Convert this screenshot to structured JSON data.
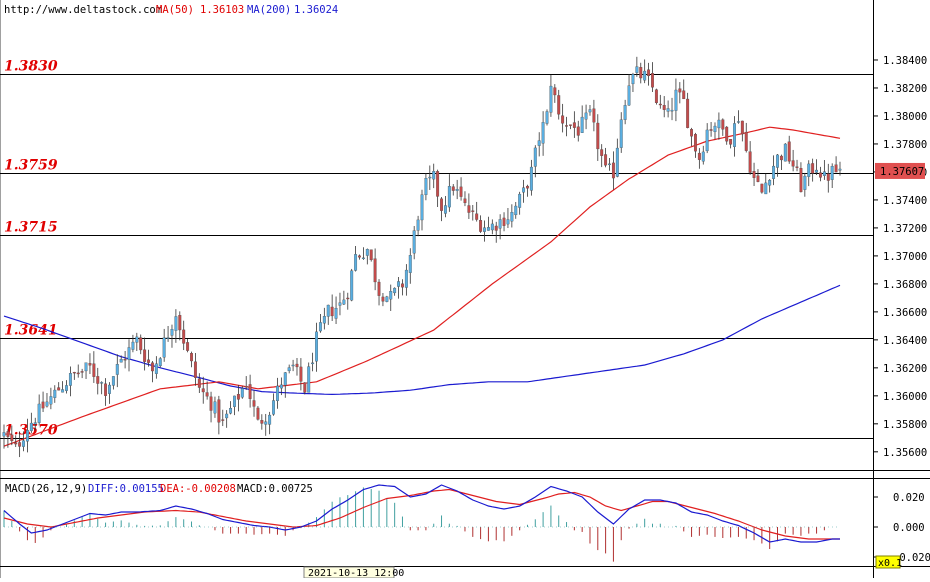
{
  "header": {
    "site": "http://www.deltastock.com",
    "ma50_label": "MA(50)",
    "ma50_value": "1.36103",
    "ma200_label": "MA(200)",
    "ma200_value": "1.36024"
  },
  "macd_header": {
    "name": "MACD(26,12,9)",
    "diff": "DIFF:0.00155",
    "dea": "DEA:-0.00208",
    "macd": "MACD:0.00725"
  },
  "date_marker": "2021-10-13 12:00",
  "zoom_label": "x0.1",
  "colors": {
    "up": "#5aaee0",
    "down": "#c24b4b",
    "ma50": "#e02020",
    "ma200": "#1a1ad0",
    "diff": "#1a1ad0",
    "dea": "#e02020",
    "level_text": "#e00000",
    "price_tag": "#e05050"
  },
  "chart_data": [
    {
      "type": "candlestick",
      "ylim": [
        1.3547,
        1.3865
      ],
      "y_ticks": [
        "1.38400",
        "1.38200",
        "1.38000",
        "1.37800",
        "1.37600",
        "1.37400",
        "1.37200",
        "1.37000",
        "1.36800",
        "1.36600",
        "1.36400",
        "1.36200",
        "1.36000",
        "1.35800",
        "1.35600"
      ],
      "y_tick_values": [
        1.384,
        1.382,
        1.38,
        1.378,
        1.376,
        1.374,
        1.372,
        1.37,
        1.368,
        1.366,
        1.364,
        1.362,
        1.36,
        1.358,
        1.356
      ],
      "levels": [
        {
          "label": "1.3830",
          "value": 1.383
        },
        {
          "label": "1.3759",
          "value": 1.3759
        },
        {
          "label": "1.3715",
          "value": 1.3715
        },
        {
          "label": "1.3641",
          "value": 1.3641
        },
        {
          "label": "1.3570",
          "value": 1.357
        }
      ],
      "last_price": "1.37607",
      "last_price_value": 1.37607,
      "anchors": [
        [
          0,
          1.3572
        ],
        [
          3,
          1.3562
        ],
        [
          6,
          1.3578
        ],
        [
          10,
          1.3592
        ],
        [
          14,
          1.3605
        ],
        [
          18,
          1.3615
        ],
        [
          22,
          1.362
        ],
        [
          26,
          1.3605
        ],
        [
          30,
          1.3625
        ],
        [
          34,
          1.364
        ],
        [
          38,
          1.3618
        ],
        [
          42,
          1.3645
        ],
        [
          44,
          1.366
        ],
        [
          47,
          1.363
        ],
        [
          50,
          1.3605
        ],
        [
          53,
          1.3595
        ],
        [
          56,
          1.358
        ],
        [
          59,
          1.3595
        ],
        [
          62,
          1.361
        ],
        [
          65,
          1.358
        ],
        [
          68,
          1.359
        ],
        [
          71,
          1.361
        ],
        [
          74,
          1.362
        ],
        [
          77,
          1.3605
        ],
        [
          80,
          1.364
        ],
        [
          83,
          1.366
        ],
        [
          86,
          1.3665
        ],
        [
          88,
          1.3675
        ],
        [
          90,
          1.37
        ],
        [
          93,
          1.3705
        ],
        [
          96,
          1.3675
        ],
        [
          99,
          1.367
        ],
        [
          102,
          1.368
        ],
        [
          104,
          1.37
        ],
        [
          106,
          1.373
        ],
        [
          108,
          1.375
        ],
        [
          110,
          1.3755
        ],
        [
          112,
          1.3735
        ],
        [
          115,
          1.375
        ],
        [
          118,
          1.3735
        ],
        [
          121,
          1.3725
        ],
        [
          124,
          1.372
        ],
        [
          127,
          1.3725
        ],
        [
          130,
          1.373
        ],
        [
          133,
          1.3745
        ],
        [
          135,
          1.376
        ],
        [
          137,
          1.3785
        ],
        [
          139,
          1.38
        ],
        [
          140,
          1.3825
        ],
        [
          142,
          1.38
        ],
        [
          144,
          1.3795
        ],
        [
          147,
          1.379
        ],
        [
          150,
          1.38
        ],
        [
          152,
          1.378
        ],
        [
          154,
          1.376
        ],
        [
          156,
          1.376
        ],
        [
          158,
          1.38
        ],
        [
          160,
          1.3825
        ],
        [
          162,
          1.383
        ],
        [
          164,
          1.3828
        ],
        [
          166,
          1.382
        ],
        [
          168,
          1.3805
        ],
        [
          170,
          1.38
        ],
        [
          172,
          1.3815
        ],
        [
          174,
          1.381
        ],
        [
          176,
          1.3785
        ],
        [
          178,
          1.377
        ],
        [
          180,
          1.379
        ],
        [
          182,
          1.3795
        ],
        [
          184,
          1.379
        ],
        [
          186,
          1.3785
        ],
        [
          188,
          1.38
        ],
        [
          190,
          1.3775
        ],
        [
          192,
          1.3755
        ],
        [
          194,
          1.3745
        ],
        [
          196,
          1.376
        ],
        [
          198,
          1.377
        ],
        [
          200,
          1.3775
        ],
        [
          202,
          1.3765
        ],
        [
          204,
          1.375
        ],
        [
          206,
          1.376
        ],
        [
          208,
          1.3765
        ],
        [
          210,
          1.3755
        ],
        [
          212,
          1.376
        ],
        [
          214,
          1.3761
        ]
      ],
      "ma50": [
        [
          0,
          1.3564
        ],
        [
          20,
          1.3585
        ],
        [
          40,
          1.3605
        ],
        [
          55,
          1.361
        ],
        [
          65,
          1.3605
        ],
        [
          80,
          1.361
        ],
        [
          93,
          1.3625
        ],
        [
          110,
          1.3647
        ],
        [
          125,
          1.368
        ],
        [
          140,
          1.371
        ],
        [
          150,
          1.3735
        ],
        [
          160,
          1.3755
        ],
        [
          170,
          1.3772
        ],
        [
          180,
          1.3782
        ],
        [
          190,
          1.3788
        ],
        [
          196,
          1.3792
        ],
        [
          202,
          1.379
        ],
        [
          214,
          1.3784
        ]
      ],
      "ma200": [
        [
          0,
          1.3657
        ],
        [
          10,
          1.3648
        ],
        [
          20,
          1.3638
        ],
        [
          30,
          1.3628
        ],
        [
          40,
          1.362
        ],
        [
          50,
          1.3613
        ],
        [
          58,
          1.3607
        ],
        [
          66,
          1.3603
        ],
        [
          74,
          1.3602
        ],
        [
          84,
          1.3601
        ],
        [
          94,
          1.3602
        ],
        [
          104,
          1.3604
        ],
        [
          114,
          1.3608
        ],
        [
          124,
          1.361
        ],
        [
          134,
          1.361
        ],
        [
          144,
          1.3614
        ],
        [
          154,
          1.3618
        ],
        [
          164,
          1.3622
        ],
        [
          174,
          1.363
        ],
        [
          184,
          1.364
        ],
        [
          194,
          1.3655
        ],
        [
          204,
          1.3667
        ],
        [
          214,
          1.3679
        ]
      ]
    },
    {
      "type": "macd",
      "ylim": [
        -0.026,
        0.032
      ],
      "y_ticks": [
        "0.020",
        "0.000",
        "-0.020"
      ],
      "y_tick_values": [
        0.02,
        0.0,
        -0.02
      ],
      "diff_anchors": [
        [
          0,
          0.011
        ],
        [
          4,
          0.002
        ],
        [
          7,
          -0.004
        ],
        [
          11,
          -0.002
        ],
        [
          14,
          0.001
        ],
        [
          18,
          0.005
        ],
        [
          22,
          0.009
        ],
        [
          26,
          0.008
        ],
        [
          30,
          0.01
        ],
        [
          34,
          0.01
        ],
        [
          40,
          0.011
        ],
        [
          44,
          0.014
        ],
        [
          48,
          0.012
        ],
        [
          52,
          0.009
        ],
        [
          56,
          0.005
        ],
        [
          60,
          0.003
        ],
        [
          64,
          0.001
        ],
        [
          68,
          0.0
        ],
        [
          72,
          -0.002
        ],
        [
          76,
          0.0
        ],
        [
          80,
          0.004
        ],
        [
          84,
          0.012
        ],
        [
          88,
          0.018
        ],
        [
          92,
          0.025
        ],
        [
          96,
          0.028
        ],
        [
          100,
          0.027
        ],
        [
          104,
          0.02
        ],
        [
          108,
          0.022
        ],
        [
          112,
          0.028
        ],
        [
          116,
          0.024
        ],
        [
          120,
          0.018
        ],
        [
          124,
          0.014
        ],
        [
          128,
          0.012
        ],
        [
          132,
          0.014
        ],
        [
          136,
          0.02
        ],
        [
          140,
          0.027
        ],
        [
          144,
          0.024
        ],
        [
          148,
          0.02
        ],
        [
          152,
          0.01
        ],
        [
          156,
          0.002
        ],
        [
          160,
          0.012
        ],
        [
          164,
          0.018
        ],
        [
          168,
          0.018
        ],
        [
          172,
          0.016
        ],
        [
          176,
          0.01
        ],
        [
          180,
          0.008
        ],
        [
          184,
          0.004
        ],
        [
          188,
          0.001
        ],
        [
          192,
          -0.004
        ],
        [
          196,
          -0.01
        ],
        [
          200,
          -0.008
        ],
        [
          204,
          -0.01
        ],
        [
          208,
          -0.01
        ],
        [
          212,
          -0.008
        ],
        [
          214,
          -0.008
        ]
      ],
      "dea_anchors": [
        [
          0,
          0.006
        ],
        [
          6,
          0.002
        ],
        [
          12,
          0.0
        ],
        [
          18,
          0.003
        ],
        [
          24,
          0.006
        ],
        [
          30,
          0.008
        ],
        [
          36,
          0.01
        ],
        [
          44,
          0.011
        ],
        [
          50,
          0.01
        ],
        [
          56,
          0.007
        ],
        [
          62,
          0.004
        ],
        [
          68,
          0.002
        ],
        [
          74,
          0.0
        ],
        [
          80,
          0.001
        ],
        [
          86,
          0.006
        ],
        [
          92,
          0.013
        ],
        [
          98,
          0.019
        ],
        [
          104,
          0.021
        ],
        [
          110,
          0.024
        ],
        [
          114,
          0.025
        ],
        [
          120,
          0.021
        ],
        [
          126,
          0.017
        ],
        [
          132,
          0.015
        ],
        [
          138,
          0.019
        ],
        [
          142,
          0.022
        ],
        [
          146,
          0.023
        ],
        [
          150,
          0.02
        ],
        [
          154,
          0.014
        ],
        [
          158,
          0.011
        ],
        [
          162,
          0.014
        ],
        [
          166,
          0.017
        ],
        [
          170,
          0.017
        ],
        [
          176,
          0.013
        ],
        [
          182,
          0.009
        ],
        [
          188,
          0.004
        ],
        [
          194,
          -0.002
        ],
        [
          200,
          -0.006
        ],
        [
          206,
          -0.008
        ],
        [
          214,
          -0.008
        ]
      ]
    }
  ]
}
